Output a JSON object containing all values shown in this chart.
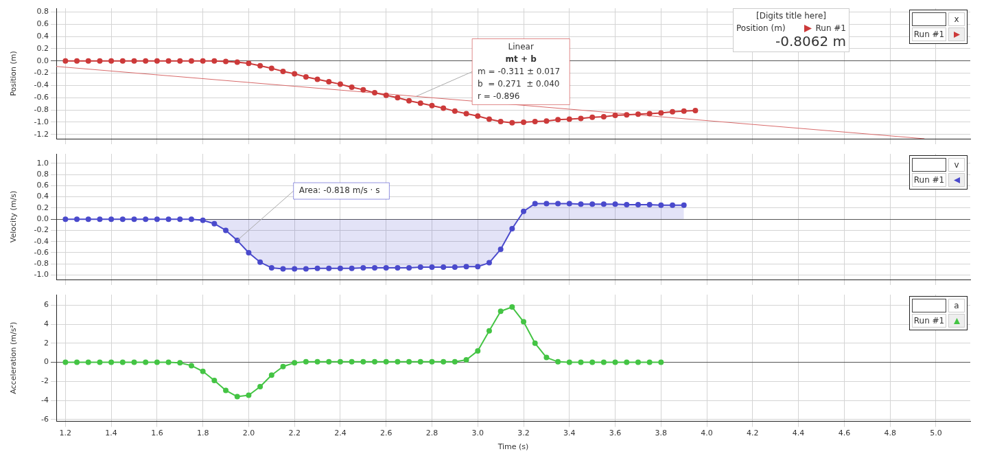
{
  "chart_data": [
    {
      "type": "line",
      "ylabel": "Position (m)",
      "legend_title": "x",
      "legend": "top right",
      "grid": true,
      "marker": "circle",
      "tick_labels": "y",
      "xlim": [
        1.16,
        5.15
      ],
      "xticks": [
        1.2,
        1.4,
        1.6,
        1.8,
        2,
        2.2,
        2.4,
        2.6,
        2.8,
        3,
        3.2,
        3.4,
        3.6,
        3.8,
        4,
        4.2,
        4.4,
        4.6,
        4.8,
        5
      ],
      "ylim": [
        -1.27,
        0.86
      ],
      "yticks": [
        0.8,
        0.6,
        0.4,
        0.2,
        {
          "value": 0,
          "label": "0.0"
        },
        -0.2,
        -0.4,
        -0.6,
        -0.8,
        {
          "value": -1,
          "label": "-1.0"
        },
        -1.2
      ],
      "x": [
        1.2,
        1.25,
        1.3,
        1.35,
        1.4,
        1.45,
        1.5,
        1.55,
        1.6,
        1.65,
        1.7,
        1.75,
        1.8,
        1.85,
        1.9,
        1.95,
        2.0,
        2.05,
        2.1,
        2.15,
        2.2,
        2.25,
        2.3,
        2.35,
        2.4,
        2.45,
        2.5,
        2.55,
        2.6,
        2.65,
        2.7,
        2.75,
        2.8,
        2.85,
        2.9,
        2.95,
        3.0,
        3.05,
        3.1,
        3.15,
        3.2,
        3.25,
        3.3,
        3.35,
        3.4,
        3.45,
        3.5,
        3.55,
        3.6,
        3.65,
        3.7,
        3.75,
        3.8,
        3.85,
        3.9,
        3.95
      ],
      "series": [
        {
          "name": "Run #1",
          "color": "#cc3a3a",
          "values": [
            0,
            0,
            0,
            0,
            0,
            0,
            0,
            0,
            0,
            0,
            0,
            0,
            0,
            0,
            -0.01,
            -0.02,
            -0.04,
            -0.08,
            -0.12,
            -0.17,
            -0.21,
            -0.26,
            -0.3,
            -0.34,
            -0.38,
            -0.43,
            -0.47,
            -0.52,
            -0.56,
            -0.6,
            -0.65,
            -0.69,
            -0.73,
            -0.77,
            -0.82,
            -0.86,
            -0.9,
            -0.95,
            -0.99,
            -1.01,
            -1.0,
            -0.99,
            -0.98,
            -0.96,
            -0.95,
            -0.94,
            -0.92,
            -0.91,
            -0.89,
            -0.88,
            -0.87,
            -0.86,
            -0.85,
            -0.83,
            -0.82,
            -0.81
          ]
        },
        {
          "type": "line",
          "marker": "none",
          "color": "#d86a6a",
          "x": [
            1.16,
            4.95
          ],
          "values": [
            -0.09,
            -1.27
          ]
        }
      ],
      "annotations": [
        "Linear",
        "mt + b",
        {
          "text": "m = -0.311 ± 0.017",
          "x": 2.73,
          "y": -0.58
        },
        "b  = 0.271  ± 0.040",
        "r = -0.896"
      ]
    },
    {
      "type": "line",
      "ylabel": "Velocity (m/s)",
      "legend_title": "v",
      "legend": "top right",
      "grid": true,
      "marker": "circle",
      "tick_labels": "y",
      "xlim": [
        1.16,
        5.15
      ],
      "xticks": [
        1.2,
        1.4,
        1.6,
        1.8,
        2,
        2.2,
        2.4,
        2.6,
        2.8,
        3,
        3.2,
        3.4,
        3.6,
        3.8,
        4,
        4.2,
        4.4,
        4.6,
        4.8,
        5
      ],
      "ylim": [
        -1.08,
        1.17
      ],
      "yticks": [
        {
          "value": 1,
          "label": "1.0"
        },
        0.8,
        0.6,
        0.4,
        0.2,
        {
          "value": 0,
          "label": "0.0"
        },
        -0.2,
        -0.4,
        -0.6,
        -0.8,
        {
          "value": -1,
          "label": "-1.0"
        }
      ],
      "x": [
        1.2,
        1.25,
        1.3,
        1.35,
        1.4,
        1.45,
        1.5,
        1.55,
        1.6,
        1.65,
        1.7,
        1.75,
        1.8,
        1.85,
        1.9,
        1.95,
        2.0,
        2.05,
        2.1,
        2.15,
        2.2,
        2.25,
        2.3,
        2.35,
        2.4,
        2.45,
        2.5,
        2.55,
        2.6,
        2.65,
        2.7,
        2.75,
        2.8,
        2.85,
        2.9,
        2.95,
        3.0,
        3.05,
        3.1,
        3.15,
        3.2,
        3.25,
        3.3,
        3.35,
        3.4,
        3.45,
        3.5,
        3.55,
        3.6,
        3.65,
        3.7,
        3.75,
        3.8,
        3.85,
        3.9
      ],
      "series": [
        {
          "name": "Run #1",
          "type": "area",
          "color": "#4a4acc",
          "values": [
            0,
            0,
            0,
            0,
            0,
            0,
            0,
            0,
            0,
            0,
            0,
            0,
            -0.02,
            -0.08,
            -0.2,
            -0.38,
            -0.6,
            -0.77,
            -0.87,
            -0.89,
            -0.89,
            -0.89,
            -0.88,
            -0.88,
            -0.88,
            -0.88,
            -0.87,
            -0.87,
            -0.87,
            -0.87,
            -0.87,
            -0.86,
            -0.86,
            -0.86,
            -0.86,
            -0.85,
            -0.85,
            -0.78,
            -0.54,
            -0.17,
            0.14,
            0.28,
            0.28,
            0.28,
            0.28,
            0.27,
            0.27,
            0.27,
            0.27,
            0.26,
            0.26,
            0.26,
            0.25,
            0.25,
            0.25
          ]
        }
      ],
      "annotations": [
        {
          "text": "Area: -0.818 m/s · s",
          "x": 1.95,
          "y": -0.38
        }
      ]
    },
    {
      "type": "line",
      "xlabel": "Time (s)",
      "ylabel": "Acceleration (m/s²)",
      "legend_title": "a",
      "legend": "top right",
      "grid": true,
      "marker": "circle",
      "xlim": [
        1.16,
        5.15
      ],
      "xticks": [
        1.2,
        1.4,
        1.6,
        1.8,
        {
          "value": 2,
          "label": "2.0"
        },
        2.2,
        2.4,
        2.6,
        2.8,
        {
          "value": 3,
          "label": "3.0"
        },
        3.2,
        3.4,
        3.6,
        3.8,
        {
          "value": 4,
          "label": "4.0"
        },
        4.2,
        4.4,
        4.6,
        4.8,
        {
          "value": 5,
          "label": "5.0"
        }
      ],
      "ylim": [
        -6.2,
        7.1
      ],
      "yticks": [
        6,
        4,
        2,
        0,
        -2,
        -4,
        -6
      ],
      "x": [
        1.2,
        1.25,
        1.3,
        1.35,
        1.4,
        1.45,
        1.5,
        1.55,
        1.6,
        1.65,
        1.7,
        1.75,
        1.8,
        1.85,
        1.9,
        1.95,
        2.0,
        2.05,
        2.1,
        2.15,
        2.2,
        2.25,
        2.3,
        2.35,
        2.4,
        2.45,
        2.5,
        2.55,
        2.6,
        2.65,
        2.7,
        2.75,
        2.8,
        2.85,
        2.9,
        2.95,
        3.0,
        3.05,
        3.1,
        3.15,
        3.2,
        3.25,
        3.3,
        3.35,
        3.4,
        3.45,
        3.5,
        3.55,
        3.6,
        3.65,
        3.7,
        3.75,
        3.8
      ],
      "series": [
        {
          "name": "Run #1",
          "color": "#44c444",
          "values": [
            0,
            0,
            0,
            0,
            0,
            0,
            0,
            0,
            0,
            0,
            -0.05,
            -0.35,
            -0.95,
            -1.9,
            -2.95,
            -3.6,
            -3.45,
            -2.55,
            -1.35,
            -0.45,
            -0.05,
            0.05,
            0.05,
            0.05,
            0.05,
            0.05,
            0.05,
            0.05,
            0.05,
            0.05,
            0.05,
            0.05,
            0.05,
            0.05,
            0.05,
            0.25,
            1.2,
            3.3,
            5.35,
            5.8,
            4.25,
            2.0,
            0.5,
            0.05,
            0,
            0,
            0,
            0,
            0,
            0,
            0,
            0,
            0
          ]
        }
      ]
    },
    {
      "type": "other",
      "title": "[Digits title here]",
      "annotations": [
        "Position (m)",
        "Run #1",
        "-0.8062 m"
      ]
    }
  ]
}
